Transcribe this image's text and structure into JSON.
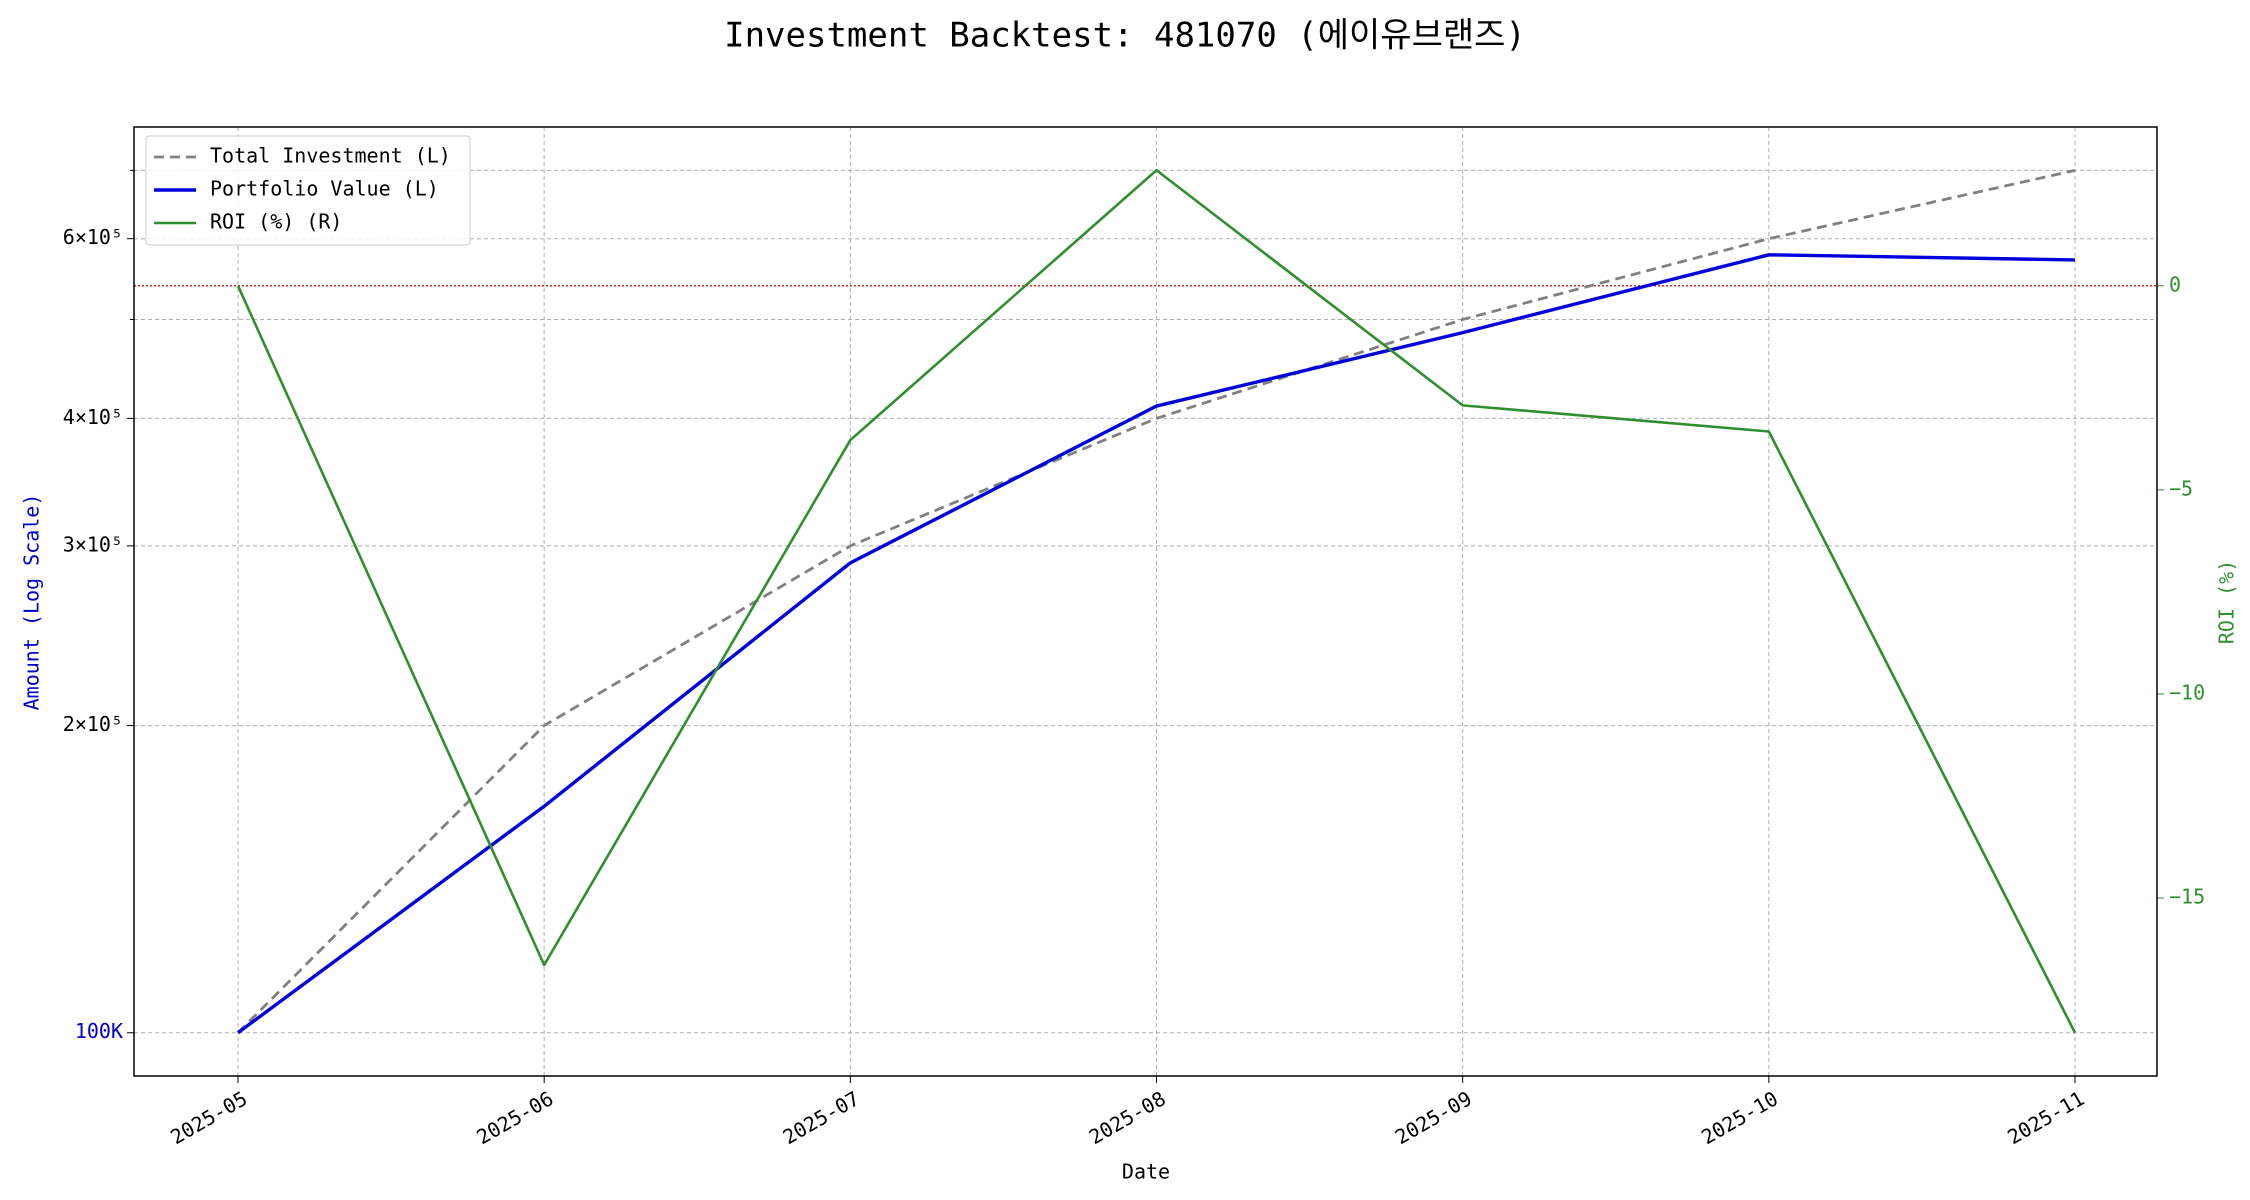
{
  "chart_data": {
    "type": "line",
    "title": "Investment Backtest: 481070 (에이유브랜즈)",
    "x_label": "Date",
    "y_label": "Amount (Log Scale)",
    "y2_label": "ROI (%)",
    "x": [
      "2025-05",
      "2025-06",
      "2025-07",
      "2025-08",
      "2025-09",
      "2025-10",
      "2025-11"
    ],
    "xticks": [
      "2025-05",
      "2025-06",
      "2025-07",
      "2025-08",
      "2025-09",
      "2025-10",
      "2025-11"
    ],
    "yscale": "log",
    "ylim": [
      90700,
      772000
    ],
    "yticks": [
      {
        "value": 100000,
        "label": "100K",
        "color": "#0000cc"
      },
      {
        "value": 200000,
        "label": "2×10⁵"
      },
      {
        "value": 300000,
        "label": "3×10⁵"
      },
      {
        "value": 400000,
        "label": "4×10⁵"
      },
      {
        "value": 600000,
        "label": "6×10⁵"
      }
    ],
    "y_minor_ticks": [
      500000,
      700000
    ],
    "y2lim": [
      -19.36,
      3.89
    ],
    "y2ticks": [
      0,
      {
        "value": -5,
        "label": "−5"
      },
      {
        "value": -10,
        "label": "−10"
      },
      {
        "value": -15,
        "label": "−15"
      }
    ],
    "y_label_color": "#0000cc",
    "y2_color": "#2f8f2f",
    "grid": true,
    "legend": "upper left",
    "reference_line": {
      "axis": "y2",
      "value": 0,
      "color": "#d62728"
    },
    "series": [
      {
        "name": "Total Investment (L)",
        "color": "#808080",
        "dash": true,
        "axis": "y",
        "values": [
          100000,
          200000,
          300000,
          400000,
          500000,
          600000,
          700000
        ]
      },
      {
        "name": "Portfolio Value (L)",
        "color": "#0000dd",
        "axis": "y",
        "values": [
          100000,
          166700,
          288700,
          411300,
          485400,
          578600,
          571900
        ]
      },
      {
        "name": "ROI (%) (R)",
        "color": "#2f8f2f",
        "axis": "y2",
        "values": [
          0,
          -16.64,
          -3.78,
          2.83,
          -2.93,
          -3.57,
          -18.3
        ]
      }
    ]
  }
}
